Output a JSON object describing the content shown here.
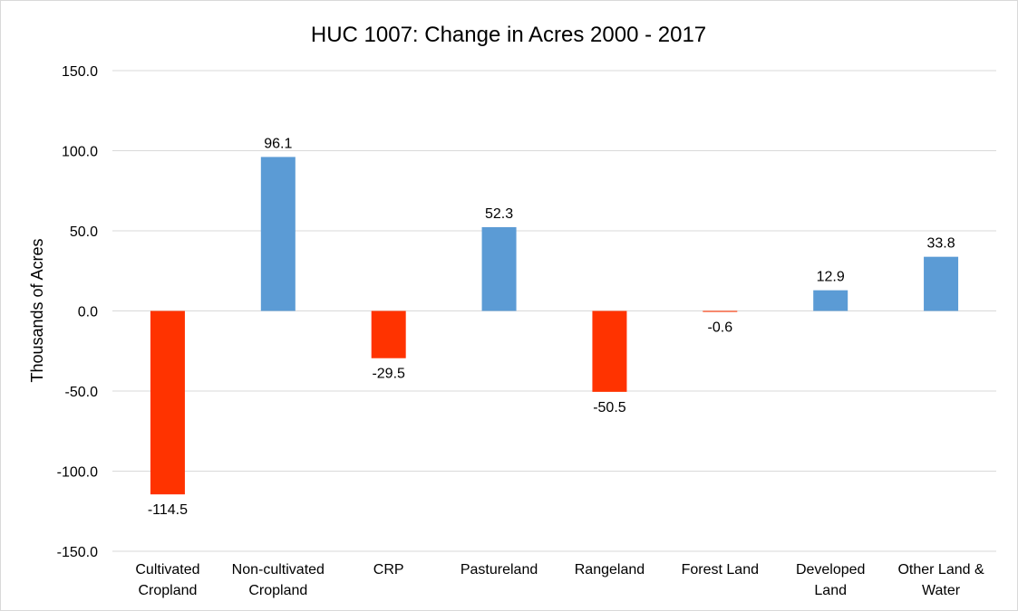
{
  "chart_data": {
    "type": "bar",
    "title": "HUC 1007: Change in Acres 2000 - 2017",
    "xlabel": "",
    "ylabel": "Thousands of Acres",
    "ylim": [
      -150,
      150
    ],
    "yticks": [
      150,
      100,
      50,
      0,
      -50,
      -100,
      -150
    ],
    "ytick_labels": [
      "150.0",
      "100.0",
      "50.0",
      "0.0",
      "-50.0",
      "-100.0",
      "-150.0"
    ],
    "grid": "horizontal",
    "legend": "none",
    "categories": [
      [
        "Cultivated",
        "Cropland"
      ],
      [
        "Non-cultivated",
        "Cropland"
      ],
      [
        "CRP"
      ],
      [
        "Pastureland"
      ],
      [
        "Rangeland"
      ],
      [
        "Forest Land"
      ],
      [
        "Developed",
        "Land"
      ],
      [
        "Other Land &",
        "Water"
      ]
    ],
    "values": [
      -114.5,
      96.1,
      -29.5,
      52.3,
      -50.5,
      -0.6,
      12.9,
      33.8
    ],
    "value_labels": [
      "-114.5",
      "96.1",
      "-29.5",
      "52.3",
      "-50.5",
      "-0.6",
      "12.9",
      "33.8"
    ],
    "colors": {
      "positive": "#5b9bd5",
      "negative": "#ff3300",
      "grid": "#d9d9d9",
      "text": "#000000"
    }
  }
}
